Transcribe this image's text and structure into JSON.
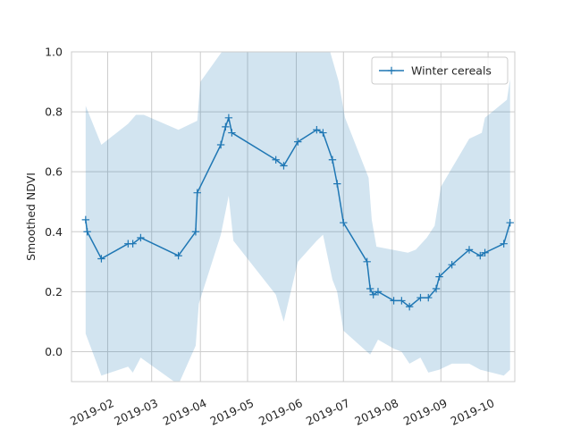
{
  "chart_data": {
    "type": "line",
    "title": "",
    "xlabel": "",
    "ylabel": "Smoothed NDVI",
    "x_axis": "date",
    "xlim": [
      "2019-01-09",
      "2019-10-18"
    ],
    "ylim": [
      -0.1,
      1.0
    ],
    "yticks": [
      0.0,
      0.2,
      0.4,
      0.6,
      0.8,
      1.0
    ],
    "ytick_labels": [
      "0.0",
      "0.2",
      "0.4",
      "0.6",
      "0.8",
      "1.0"
    ],
    "xticks": [
      "2019-02-01",
      "2019-03-01",
      "2019-04-01",
      "2019-05-01",
      "2019-06-01",
      "2019-07-01",
      "2019-08-01",
      "2019-09-01",
      "2019-10-01"
    ],
    "xtick_labels": [
      "2019-02",
      "2019-03",
      "2019-04",
      "2019-05",
      "2019-06",
      "2019-07",
      "2019-08",
      "2019-09",
      "2019-10"
    ],
    "grid": true,
    "legend_position": "top-right",
    "series": [
      {
        "name": "Winter cereals",
        "color": "#1f77b4",
        "marker": "plus",
        "points": [
          {
            "x": "2019-01-18",
            "y": 0.44
          },
          {
            "x": "2019-01-19",
            "y": 0.4
          },
          {
            "x": "2019-01-28",
            "y": 0.31
          },
          {
            "x": "2019-02-14",
            "y": 0.36
          },
          {
            "x": "2019-02-17",
            "y": 0.36
          },
          {
            "x": "2019-02-22",
            "y": 0.38
          },
          {
            "x": "2019-03-18",
            "y": 0.32
          },
          {
            "x": "2019-03-29",
            "y": 0.4
          },
          {
            "x": "2019-03-30",
            "y": 0.53
          },
          {
            "x": "2019-04-14",
            "y": 0.69
          },
          {
            "x": "2019-04-17",
            "y": 0.75
          },
          {
            "x": "2019-04-19",
            "y": 0.78
          },
          {
            "x": "2019-04-21",
            "y": 0.73
          },
          {
            "x": "2019-05-19",
            "y": 0.64
          },
          {
            "x": "2019-05-24",
            "y": 0.62
          },
          {
            "x": "2019-06-02",
            "y": 0.7
          },
          {
            "x": "2019-06-14",
            "y": 0.74
          },
          {
            "x": "2019-06-18",
            "y": 0.73
          },
          {
            "x": "2019-06-24",
            "y": 0.64
          },
          {
            "x": "2019-06-27",
            "y": 0.56
          },
          {
            "x": "2019-07-01",
            "y": 0.43
          },
          {
            "x": "2019-07-16",
            "y": 0.3
          },
          {
            "x": "2019-07-18",
            "y": 0.21
          },
          {
            "x": "2019-07-20",
            "y": 0.19
          },
          {
            "x": "2019-07-23",
            "y": 0.2
          },
          {
            "x": "2019-08-02",
            "y": 0.17
          },
          {
            "x": "2019-08-07",
            "y": 0.17
          },
          {
            "x": "2019-08-12",
            "y": 0.15
          },
          {
            "x": "2019-08-19",
            "y": 0.18
          },
          {
            "x": "2019-08-24",
            "y": 0.18
          },
          {
            "x": "2019-08-29",
            "y": 0.21
          },
          {
            "x": "2019-08-31",
            "y": 0.25
          },
          {
            "x": "2019-09-08",
            "y": 0.29
          },
          {
            "x": "2019-09-19",
            "y": 0.34
          },
          {
            "x": "2019-09-26",
            "y": 0.32
          },
          {
            "x": "2019-09-29",
            "y": 0.33
          },
          {
            "x": "2019-10-11",
            "y": 0.36
          },
          {
            "x": "2019-10-15",
            "y": 0.43
          }
        ]
      }
    ],
    "band": {
      "color": "#1f77b4",
      "opacity": 0.2,
      "upper": [
        {
          "x": "2019-01-18",
          "y": 0.82
        },
        {
          "x": "2019-01-28",
          "y": 0.69
        },
        {
          "x": "2019-02-14",
          "y": 0.76
        },
        {
          "x": "2019-02-19",
          "y": 0.79
        },
        {
          "x": "2019-02-24",
          "y": 0.79
        },
        {
          "x": "2019-03-18",
          "y": 0.74
        },
        {
          "x": "2019-03-30",
          "y": 0.77
        },
        {
          "x": "2019-04-01",
          "y": 0.9
        },
        {
          "x": "2019-04-16",
          "y": 1.01
        },
        {
          "x": "2019-06-22",
          "y": 1.01
        },
        {
          "x": "2019-06-28",
          "y": 0.9
        },
        {
          "x": "2019-07-02",
          "y": 0.78
        },
        {
          "x": "2019-07-17",
          "y": 0.58
        },
        {
          "x": "2019-07-19",
          "y": 0.44
        },
        {
          "x": "2019-07-22",
          "y": 0.35
        },
        {
          "x": "2019-08-11",
          "y": 0.33
        },
        {
          "x": "2019-08-16",
          "y": 0.34
        },
        {
          "x": "2019-08-23",
          "y": 0.38
        },
        {
          "x": "2019-08-28",
          "y": 0.42
        },
        {
          "x": "2019-09-01",
          "y": 0.55
        },
        {
          "x": "2019-09-19",
          "y": 0.71
        },
        {
          "x": "2019-09-27",
          "y": 0.73
        },
        {
          "x": "2019-09-29",
          "y": 0.78
        },
        {
          "x": "2019-10-13",
          "y": 0.84
        },
        {
          "x": "2019-10-15",
          "y": 0.91
        }
      ],
      "lower": [
        {
          "x": "2019-01-18",
          "y": 0.06
        },
        {
          "x": "2019-01-28",
          "y": -0.08
        },
        {
          "x": "2019-02-14",
          "y": -0.05
        },
        {
          "x": "2019-02-17",
          "y": -0.07
        },
        {
          "x": "2019-02-22",
          "y": -0.02
        },
        {
          "x": "2019-03-18",
          "y": -0.11
        },
        {
          "x": "2019-03-29",
          "y": 0.02
        },
        {
          "x": "2019-03-31",
          "y": 0.16
        },
        {
          "x": "2019-04-14",
          "y": 0.39
        },
        {
          "x": "2019-04-19",
          "y": 0.52
        },
        {
          "x": "2019-04-22",
          "y": 0.37
        },
        {
          "x": "2019-05-19",
          "y": 0.19
        },
        {
          "x": "2019-05-24",
          "y": 0.1
        },
        {
          "x": "2019-06-02",
          "y": 0.3
        },
        {
          "x": "2019-06-14",
          "y": 0.37
        },
        {
          "x": "2019-06-18",
          "y": 0.39
        },
        {
          "x": "2019-06-24",
          "y": 0.24
        },
        {
          "x": "2019-06-27",
          "y": 0.2
        },
        {
          "x": "2019-07-01",
          "y": 0.07
        },
        {
          "x": "2019-07-18",
          "y": -0.01
        },
        {
          "x": "2019-07-23",
          "y": 0.04
        },
        {
          "x": "2019-08-02",
          "y": 0.01
        },
        {
          "x": "2019-08-07",
          "y": 0.0
        },
        {
          "x": "2019-08-12",
          "y": -0.04
        },
        {
          "x": "2019-08-19",
          "y": -0.02
        },
        {
          "x": "2019-08-24",
          "y": -0.07
        },
        {
          "x": "2019-08-31",
          "y": -0.06
        },
        {
          "x": "2019-09-08",
          "y": -0.04
        },
        {
          "x": "2019-09-19",
          "y": -0.04
        },
        {
          "x": "2019-09-26",
          "y": -0.06
        },
        {
          "x": "2019-10-11",
          "y": -0.08
        },
        {
          "x": "2019-10-15",
          "y": -0.06
        }
      ]
    }
  }
}
